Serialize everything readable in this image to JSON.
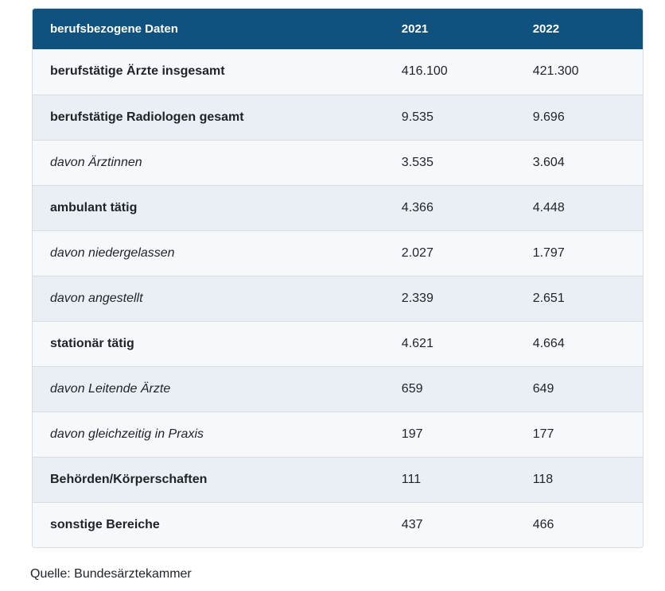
{
  "chart_data": {
    "type": "table",
    "title": "berufsbezogene Daten",
    "columns": [
      "berufsbezogene Daten",
      "2021",
      "2022"
    ],
    "rows": [
      {
        "label": "berufstätige Ärzte insgesamt",
        "style": "bold",
        "2021": "416.100",
        "2022": "421.300"
      },
      {
        "label": "berufstätige Radiologen gesamt",
        "style": "bold",
        "2021": "9.535",
        "2022": "9.696"
      },
      {
        "label": "davon Ärztinnen",
        "style": "italic",
        "2021": "3.535",
        "2022": "3.604"
      },
      {
        "label": "ambulant tätig",
        "style": "bold",
        "2021": "4.366",
        "2022": "4.448"
      },
      {
        "label": "davon niedergelassen",
        "style": "italic",
        "2021": "2.027",
        "2022": "1.797"
      },
      {
        "label": "davon angestellt",
        "style": "italic",
        "2021": "2.339",
        "2022": "2.651"
      },
      {
        "label": "stationär tätig",
        "style": "bold",
        "2021": "4.621",
        "2022": "4.664"
      },
      {
        "label": "davon Leitende Ärzte",
        "style": "italic",
        "2021": "659",
        "2022": "649"
      },
      {
        "label": "davon gleichzeitig in Praxis",
        "style": "italic",
        "2021": "197",
        "2022": "177"
      },
      {
        "label": "Behörden/Körperschaften",
        "style": "bold",
        "2021": "111",
        "2022": "118"
      },
      {
        "label": "sonstige Bereiche",
        "style": "bold",
        "2021": "437",
        "2022": "466"
      }
    ]
  },
  "source": "Quelle: Bundesärztekammer",
  "colors": {
    "header_bg": "#10527f",
    "header_text": "#ffffff",
    "row_light": "#f6f9fb",
    "row_dark": "#e9eff5",
    "border": "#d8dcdf",
    "text": "#1f2327"
  }
}
